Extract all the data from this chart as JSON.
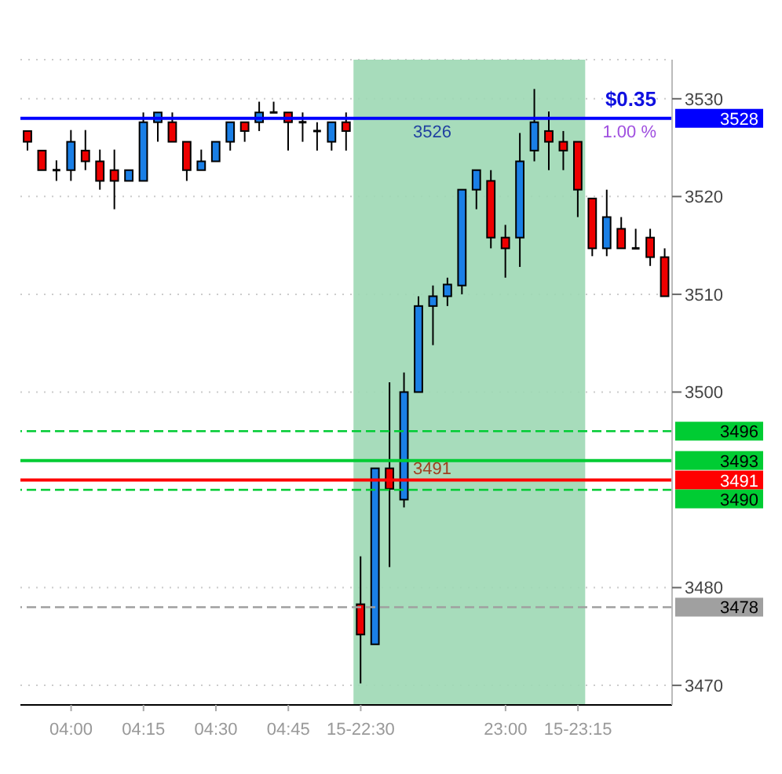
{
  "chart_data": {
    "type": "candlestick",
    "categories": [
      null,
      null,
      null,
      "04:00",
      null,
      null,
      null,
      null,
      "04:15",
      null,
      null,
      null,
      null,
      "04:30",
      null,
      null,
      null,
      null,
      "04:45",
      null,
      null,
      null,
      null,
      "15-22:30",
      null,
      null,
      null,
      null,
      null,
      null,
      null,
      null,
      null,
      "23:00",
      null,
      null,
      null,
      null,
      "15-23:15",
      null,
      null,
      null,
      null,
      null,
      null
    ],
    "ohlc": [
      [
        3526.7,
        3526.7,
        3524.7,
        3525.6
      ],
      [
        3524.7,
        3524.7,
        3522.7,
        3522.7
      ],
      [
        3522.7,
        3523.7,
        3521.6,
        3522.7
      ],
      [
        3522.7,
        3526.8,
        3521.6,
        3525.6
      ],
      [
        3524.7,
        3526.8,
        3522.7,
        3523.6
      ],
      [
        3523.6,
        3524.8,
        3520.7,
        3521.6
      ],
      [
        3522.7,
        3524.8,
        3518.7,
        3521.6
      ],
      [
        3521.6,
        3522.7,
        3521.6,
        3522.7
      ],
      [
        3521.6,
        3528.6,
        3521.6,
        3527.6
      ],
      [
        3527.6,
        3528.6,
        3525.6,
        3528.6
      ],
      [
        3527.6,
        3528.6,
        3525.6,
        3525.6
      ],
      [
        3525.6,
        3525.6,
        3521.6,
        3522.7
      ],
      [
        3522.7,
        3524.8,
        3522.7,
        3523.6
      ],
      [
        3523.6,
        3525.6,
        3523.6,
        3525.6
      ],
      [
        3525.6,
        3527.6,
        3524.7,
        3527.6
      ],
      [
        3527.6,
        3527.6,
        3525.6,
        3526.7
      ],
      [
        3527.6,
        3529.7,
        3526.7,
        3528.6
      ],
      [
        3528.6,
        3529.7,
        3528.6,
        3528.6
      ],
      [
        3528.6,
        3528.6,
        3524.7,
        3527.6
      ],
      [
        3527.6,
        3528.6,
        3525.6,
        3527.6
      ],
      [
        3526.7,
        3527.6,
        3524.7,
        3526.7
      ],
      [
        3525.6,
        3527.6,
        3524.7,
        3527.6
      ],
      [
        3527.6,
        3528.6,
        3524.7,
        3526.7
      ],
      [
        3478.3,
        3483.2,
        3470.2,
        3475.2
      ],
      [
        3474.2,
        3492.2,
        3474.2,
        3492.2
      ],
      [
        3492.2,
        3501.0,
        3482.1,
        3490.1
      ],
      [
        3489.0,
        3502.0,
        3488.2,
        3500.0
      ],
      [
        3500.0,
        3509.8,
        3500.0,
        3508.8
      ],
      [
        3508.8,
        3510.9,
        3504.8,
        3509.8
      ],
      [
        3509.8,
        3511.7,
        3508.8,
        3511.0
      ],
      [
        3510.9,
        3520.7,
        3510.0,
        3520.7
      ],
      [
        3520.7,
        3522.7,
        3518.7,
        3522.7
      ],
      [
        3521.6,
        3522.7,
        3514.7,
        3515.8
      ],
      [
        3515.8,
        3517.1,
        3511.7,
        3514.7
      ],
      [
        3515.8,
        3526.5,
        3512.8,
        3523.6
      ],
      [
        3524.7,
        3531.0,
        3523.6,
        3527.6
      ],
      [
        3526.7,
        3528.7,
        3522.7,
        3525.6
      ],
      [
        3525.6,
        3526.7,
        3522.7,
        3524.7
      ],
      [
        3525.6,
        3525.6,
        3517.9,
        3520.7
      ],
      [
        3519.8,
        3519.8,
        3513.9,
        3514.7
      ],
      [
        3514.7,
        3520.7,
        3513.9,
        3517.9
      ],
      [
        3516.7,
        3517.9,
        3514.7,
        3514.7
      ],
      [
        3514.7,
        3516.7,
        3514.7,
        3514.7
      ],
      [
        3515.8,
        3516.7,
        3512.9,
        3513.8
      ],
      [
        3513.8,
        3514.7,
        3509.8,
        3509.8
      ]
    ],
    "colors": [
      "#ee0000",
      "#ee0000",
      "#000000",
      "#1a7fe6",
      "#ee0000",
      "#ee0000",
      "#ee0000",
      "#1a7fe6",
      "#1a7fe6",
      "#1a7fe6",
      "#ee0000",
      "#ee0000",
      "#1a7fe6",
      "#1a7fe6",
      "#1a7fe6",
      "#ee0000",
      "#1a7fe6",
      "#000000",
      "#ee0000",
      "#000000",
      "#000000",
      "#1a7fe6",
      "#ee0000",
      "#ee0000",
      "#1a7fe6",
      "#ee0000",
      "#1a7fe6",
      "#1a7fe6",
      "#1a7fe6",
      "#1a7fe6",
      "#1a7fe6",
      "#1a7fe6",
      "#ee0000",
      "#ee0000",
      "#1a7fe6",
      "#1a7fe6",
      "#ee0000",
      "#ee0000",
      "#ee0000",
      "#ee0000",
      "#1a7fe6",
      "#ee0000",
      "#000000",
      "#ee0000",
      "#ee0000"
    ],
    "ylim": [
      3468,
      3534
    ],
    "yticks": [
      3470,
      3480,
      3500,
      3510,
      3520,
      3530
    ],
    "grid": true,
    "ref_lines": [
      {
        "axis": "y",
        "value": 3528,
        "label": "3528",
        "color": "#0000ff",
        "line_style": "solid"
      },
      {
        "axis": "y",
        "value": 3496,
        "label": "3496",
        "color": "#00cc33",
        "line_style": "dashed"
      },
      {
        "axis": "y",
        "value": 3493,
        "label": "3493",
        "color": "#00cc33",
        "line_style": "solid"
      },
      {
        "axis": "y",
        "value": 3491,
        "label": "3491",
        "color": "#ff0000",
        "line_style": "solid"
      },
      {
        "axis": "y",
        "value": 3490,
        "label": "3490",
        "color": "#00cc33",
        "line_style": "dashed"
      },
      {
        "axis": "y",
        "value": 3478,
        "label": "3478",
        "color": "#a0a0a0",
        "line_style": "dashed"
      }
    ],
    "bands": [
      {
        "axis": "x",
        "from": "15-22:30",
        "to": "15-23:15",
        "color": "#9dd8b4"
      }
    ],
    "annotations": [
      "$0.35",
      "1.00 %",
      "3526",
      "3491"
    ]
  }
}
